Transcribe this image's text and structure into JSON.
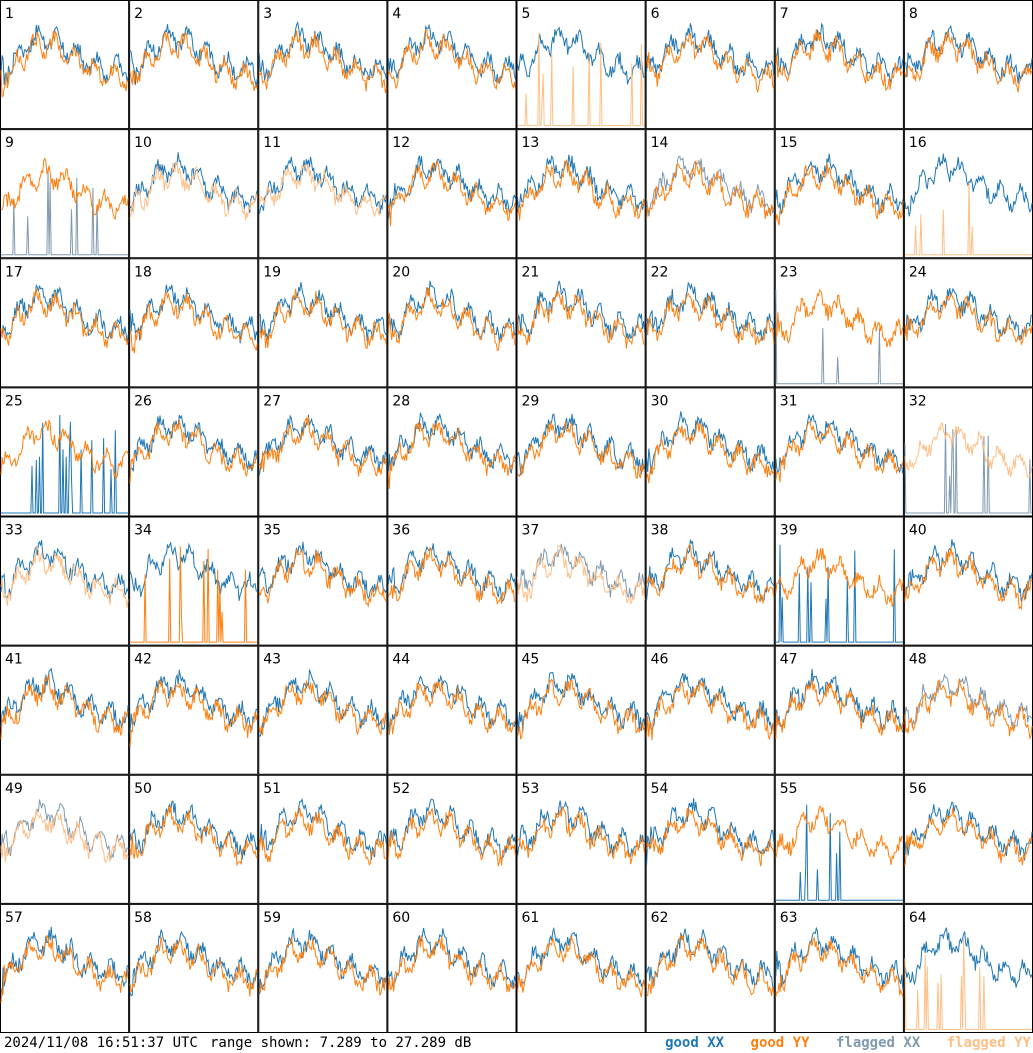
{
  "footer": {
    "timestamp": "2024/11/08 16:51:37 UTC",
    "range_text": "range shown: 7.289 to 27.289 dB"
  },
  "legend": {
    "good_xx": "good XX",
    "good_yy": "good YY",
    "flagged_xx": "flagged XX",
    "flagged_yy": "flagged YY"
  },
  "colors": {
    "good_xx": "#1f77b4",
    "good_yy": "#ff7f0e",
    "flagged_xx": "#7f99b0",
    "flagged_yy": "#ffbf86",
    "grid": "#000000"
  },
  "chart_data": {
    "type": "line",
    "layout": "8x8 small multiples of antenna spectra",
    "ylim": [
      7.289,
      27.289
    ],
    "yunit": "dB",
    "panels": [
      {
        "id": "1",
        "xx": "good",
        "yy": "good"
      },
      {
        "id": "2",
        "xx": "good",
        "yy": "good"
      },
      {
        "id": "3",
        "xx": "good",
        "yy": "good"
      },
      {
        "id": "4",
        "xx": "good",
        "yy": "good"
      },
      {
        "id": "5",
        "xx": "good",
        "yy": "flagged",
        "spiky": "yy"
      },
      {
        "id": "6",
        "xx": "good",
        "yy": "good"
      },
      {
        "id": "7",
        "xx": "good",
        "yy": "good"
      },
      {
        "id": "8",
        "xx": "good",
        "yy": "good"
      },
      {
        "id": "9",
        "xx": "flagged",
        "yy": "good",
        "spiky": "xx"
      },
      {
        "id": "10",
        "xx": "good",
        "yy": "flagged"
      },
      {
        "id": "11",
        "xx": "good",
        "yy": "flagged"
      },
      {
        "id": "12",
        "xx": "good",
        "yy": "good"
      },
      {
        "id": "13",
        "xx": "good",
        "yy": "good"
      },
      {
        "id": "14",
        "xx": "flagged",
        "yy": "good"
      },
      {
        "id": "15",
        "xx": "good",
        "yy": "good"
      },
      {
        "id": "16",
        "xx": "good",
        "yy": "flagged",
        "spiky": "yy"
      },
      {
        "id": "17",
        "xx": "good",
        "yy": "good"
      },
      {
        "id": "18",
        "xx": "good",
        "yy": "good"
      },
      {
        "id": "19",
        "xx": "good",
        "yy": "good"
      },
      {
        "id": "20",
        "xx": "good",
        "yy": "good"
      },
      {
        "id": "21",
        "xx": "good",
        "yy": "good"
      },
      {
        "id": "22",
        "xx": "good",
        "yy": "good"
      },
      {
        "id": "23",
        "xx": "flagged",
        "yy": "good",
        "spiky": "xx"
      },
      {
        "id": "24",
        "xx": "good",
        "yy": "good"
      },
      {
        "id": "25",
        "xx": "good",
        "yy": "good",
        "spiky": "xx"
      },
      {
        "id": "26",
        "xx": "good",
        "yy": "good"
      },
      {
        "id": "27",
        "xx": "good",
        "yy": "good"
      },
      {
        "id": "28",
        "xx": "good",
        "yy": "good"
      },
      {
        "id": "29",
        "xx": "good",
        "yy": "good"
      },
      {
        "id": "30",
        "xx": "good",
        "yy": "good"
      },
      {
        "id": "31",
        "xx": "good",
        "yy": "good"
      },
      {
        "id": "32",
        "xx": "flagged",
        "yy": "flagged",
        "spiky": "xx"
      },
      {
        "id": "33",
        "xx": "good",
        "yy": "flagged"
      },
      {
        "id": "34",
        "xx": "good",
        "yy": "good",
        "spiky": "yy"
      },
      {
        "id": "35",
        "xx": "good",
        "yy": "good"
      },
      {
        "id": "36",
        "xx": "good",
        "yy": "good"
      },
      {
        "id": "37",
        "xx": "flagged",
        "yy": "flagged"
      },
      {
        "id": "38",
        "xx": "good",
        "yy": "good"
      },
      {
        "id": "39",
        "xx": "good",
        "yy": "good",
        "spiky": "xx"
      },
      {
        "id": "40",
        "xx": "good",
        "yy": "good"
      },
      {
        "id": "41",
        "xx": "good",
        "yy": "good"
      },
      {
        "id": "42",
        "xx": "good",
        "yy": "good"
      },
      {
        "id": "43",
        "xx": "good",
        "yy": "good"
      },
      {
        "id": "44",
        "xx": "good",
        "yy": "good"
      },
      {
        "id": "45",
        "xx": "good",
        "yy": "good"
      },
      {
        "id": "46",
        "xx": "good",
        "yy": "good"
      },
      {
        "id": "47",
        "xx": "good",
        "yy": "good"
      },
      {
        "id": "48",
        "xx": "flagged",
        "yy": "good"
      },
      {
        "id": "49",
        "xx": "flagged",
        "yy": "flagged"
      },
      {
        "id": "50",
        "xx": "good",
        "yy": "good"
      },
      {
        "id": "51",
        "xx": "good",
        "yy": "good"
      },
      {
        "id": "52",
        "xx": "good",
        "yy": "good"
      },
      {
        "id": "53",
        "xx": "good",
        "yy": "good"
      },
      {
        "id": "54",
        "xx": "good",
        "yy": "good"
      },
      {
        "id": "55",
        "xx": "good",
        "yy": "good",
        "spiky": "xx"
      },
      {
        "id": "56",
        "xx": "good",
        "yy": "good"
      },
      {
        "id": "57",
        "xx": "good",
        "yy": "good"
      },
      {
        "id": "58",
        "xx": "good",
        "yy": "good"
      },
      {
        "id": "59",
        "xx": "good",
        "yy": "good"
      },
      {
        "id": "60",
        "xx": "good",
        "yy": "good"
      },
      {
        "id": "61",
        "xx": "good",
        "yy": "good"
      },
      {
        "id": "62",
        "xx": "good",
        "yy": "good"
      },
      {
        "id": "63",
        "xx": "good",
        "yy": "good"
      },
      {
        "id": "64",
        "xx": "good",
        "yy": "flagged",
        "spiky": "yy"
      }
    ]
  }
}
